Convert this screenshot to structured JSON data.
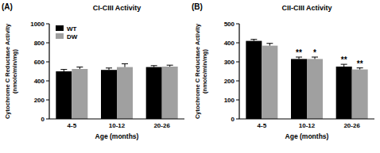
{
  "chart_data": [
    {
      "type": "bar",
      "panel_label": "(A)",
      "title": "CI-CIII Activity",
      "y_label": [
        "Cytochrome C Reductase Activity",
        "(nmole/min/mg)"
      ],
      "x_label": "Age (months)",
      "categories": [
        "4-5",
        "10-12",
        "20-26"
      ],
      "series": [
        {
          "name": "WT",
          "color": "#000000",
          "values": [
            500,
            515,
            545
          ],
          "errors": [
            20,
            20,
            15
          ]
        },
        {
          "name": "DW",
          "color": "#a0a0a0",
          "values": [
            525,
            545,
            550
          ],
          "errors": [
            20,
            35,
            15
          ]
        }
      ],
      "ylim": [
        0,
        1000
      ],
      "yticks": [
        0,
        200,
        400,
        600,
        800,
        1000
      ],
      "legend": "upper left"
    },
    {
      "type": "bar",
      "panel_label": "(B)",
      "title": "CII-CIII Activity",
      "y_label": [
        "Cytochrome C Reductase Activity",
        "(nmole/min/mg)"
      ],
      "x_label": "Age (months)",
      "categories": [
        "4-5",
        "10-12",
        "20-26"
      ],
      "series": [
        {
          "name": "WT",
          "color": "#000000",
          "values": [
            410,
            315,
            275
          ],
          "errors": [
            8,
            10,
            12
          ],
          "significance": [
            null,
            "**",
            "**"
          ]
        },
        {
          "name": "DW",
          "color": "#a0a0a0",
          "values": [
            385,
            315,
            260
          ],
          "errors": [
            12,
            10,
            8
          ],
          "significance": [
            null,
            "*",
            "**"
          ]
        }
      ],
      "ylim": [
        0,
        500
      ],
      "yticks": [
        0,
        100,
        200,
        300,
        400,
        500
      ]
    }
  ]
}
